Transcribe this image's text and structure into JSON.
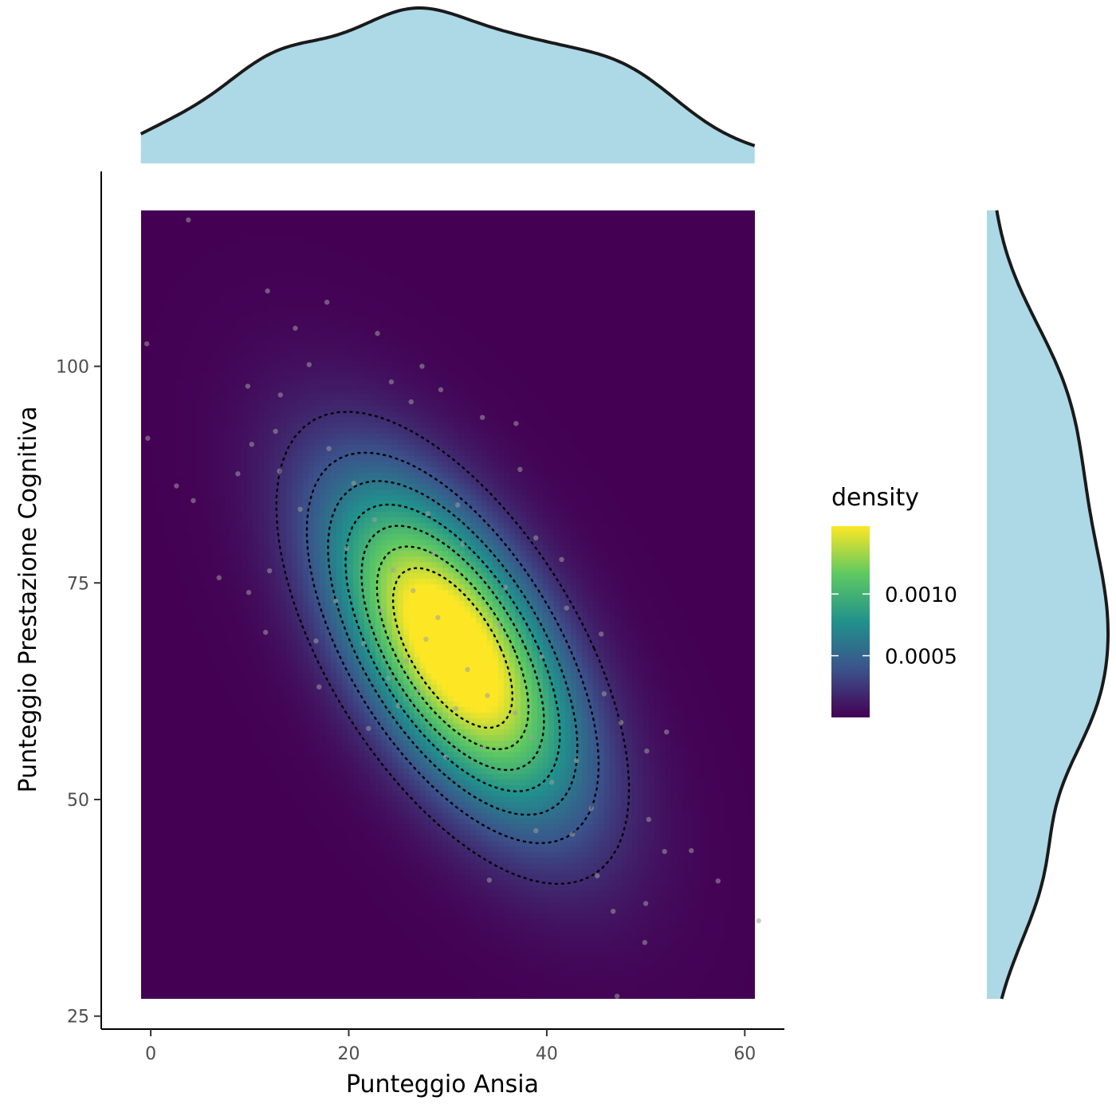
{
  "chart_data": {
    "type": "scatter",
    "subtype": "density-heatmap with contours and marginal density plots",
    "xlabel": "Punteggio Ansia",
    "ylabel": "Punteggio Prestazione Cognitiva",
    "xlim": [
      -1,
      61
    ],
    "ylim": [
      27,
      118
    ],
    "x_axis_range": [
      -5,
      64
    ],
    "y_axis_range": [
      23.5,
      122.5
    ],
    "x_ticks": [
      "0",
      "20",
      "40",
      "60"
    ],
    "x_tick_values": [
      0,
      20,
      40,
      60
    ],
    "y_ticks": [
      "25",
      "50",
      "75",
      "100"
    ],
    "y_tick_values": [
      25,
      50,
      75,
      100
    ],
    "grid": false,
    "colorscale": "viridis",
    "colors": [
      "#440154",
      "#3b528b",
      "#21918c",
      "#5ec962",
      "#fde725"
    ],
    "marginal_fill": "#add8e6",
    "marginal_stroke": "#1a1a1a",
    "density": {
      "mean_x": 30.5,
      "mean_y": 67.5,
      "sd_x": 8.5,
      "sd_y": 13.0,
      "rho": -0.6,
      "max": 0.00155
    },
    "contour_levels": [
      0.0002,
      0.0004,
      0.0006,
      0.0008,
      0.001,
      0.0012,
      0.0014
    ],
    "legend": {
      "title": "density",
      "position": "right",
      "min": 0,
      "max": 0.00155,
      "ticks": [
        "0.0005",
        "0.0010"
      ],
      "tick_values": [
        0.0005,
        0.001
      ]
    },
    "points": [
      [
        3.8,
        116.9
      ],
      [
        -0.4,
        102.6
      ],
      [
        -0.3,
        91.7
      ],
      [
        2.6,
        86.2
      ],
      [
        4.3,
        84.5
      ],
      [
        6.9,
        75.6
      ],
      [
        9.9,
        73.9
      ],
      [
        11.6,
        69.3
      ],
      [
        11.8,
        108.7
      ],
      [
        14.6,
        104.4
      ],
      [
        16.0,
        100.2
      ],
      [
        17.8,
        107.4
      ],
      [
        22.9,
        103.8
      ],
      [
        24.3,
        98.2
      ],
      [
        26.3,
        95.9
      ],
      [
        27.4,
        100.0
      ],
      [
        29.3,
        97.3
      ],
      [
        33.5,
        94.1
      ],
      [
        36.9,
        93.4
      ],
      [
        37.3,
        88.1
      ],
      [
        38.9,
        80.2
      ],
      [
        41.5,
        77.7
      ],
      [
        42.0,
        72.1
      ],
      [
        45.5,
        69.1
      ],
      [
        45.8,
        62.2
      ],
      [
        47.5,
        58.9
      ],
      [
        50.1,
        55.6
      ],
      [
        52.1,
        57.8
      ],
      [
        50.3,
        47.7
      ],
      [
        51.9,
        44.0
      ],
      [
        54.6,
        44.1
      ],
      [
        57.3,
        40.6
      ],
      [
        61.4,
        36.0
      ],
      [
        50.0,
        38.0
      ],
      [
        49.9,
        33.5
      ],
      [
        46.7,
        37.1
      ],
      [
        45.1,
        41.2
      ],
      [
        42.6,
        46.0
      ],
      [
        38.9,
        46.4
      ],
      [
        34.2,
        40.7
      ],
      [
        29.8,
        54.9
      ],
      [
        25.0,
        60.8
      ],
      [
        22.0,
        58.2
      ],
      [
        17.0,
        63.0
      ],
      [
        16.7,
        68.3
      ],
      [
        18.7,
        72.9
      ],
      [
        19.8,
        79.0
      ],
      [
        22.6,
        82.3
      ],
      [
        15.1,
        83.5
      ],
      [
        13.0,
        87.9
      ],
      [
        12.6,
        92.5
      ],
      [
        8.8,
        87.6
      ],
      [
        9.8,
        97.7
      ],
      [
        13.1,
        96.7
      ],
      [
        47.1,
        27.3
      ],
      [
        12.0,
        76.4
      ],
      [
        10.2,
        91.0
      ],
      [
        28.0,
        83.0
      ],
      [
        31.5,
        79.5
      ],
      [
        35.2,
        70.2
      ],
      [
        26.5,
        74.1
      ],
      [
        29.0,
        71.0
      ],
      [
        32.0,
        65.0
      ],
      [
        34.0,
        62.0
      ],
      [
        27.8,
        68.5
      ],
      [
        30.8,
        60.5
      ],
      [
        24.5,
        76.5
      ],
      [
        36.8,
        60.0
      ],
      [
        38.5,
        57.2
      ],
      [
        40.5,
        52.0
      ],
      [
        43.0,
        54.5
      ],
      [
        44.5,
        49.0
      ],
      [
        21.5,
        68.0
      ],
      [
        23.2,
        71.8
      ],
      [
        25.8,
        66.0
      ],
      [
        33.5,
        56.0
      ],
      [
        28.5,
        78.5
      ],
      [
        31.0,
        84.0
      ],
      [
        20.5,
        86.5
      ],
      [
        18.0,
        90.5
      ],
      [
        35.8,
        74.5
      ],
      [
        39.5,
        66.5
      ],
      [
        27.0,
        62.5
      ],
      [
        24.0,
        64.0
      ]
    ]
  }
}
